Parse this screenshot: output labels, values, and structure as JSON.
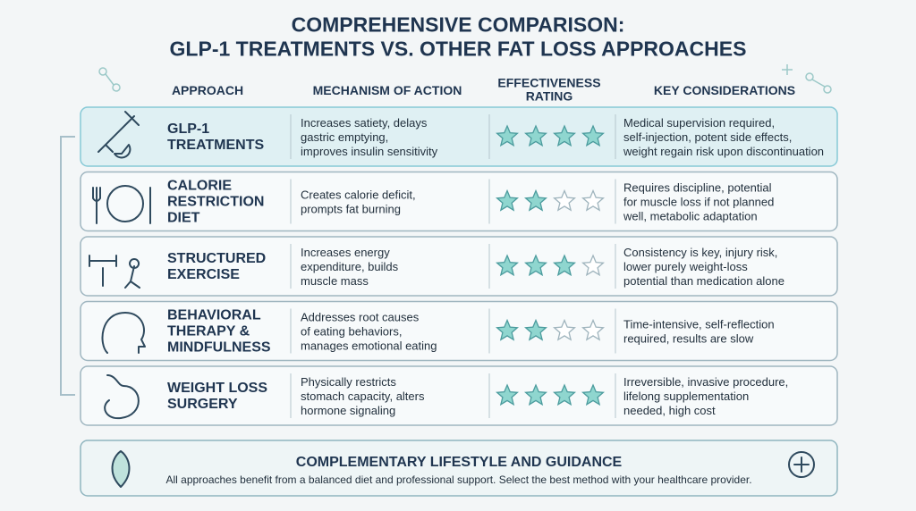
{
  "header": {
    "title_lines": [
      "COMPREHENSIVE COMPARISON:",
      "GLP-1 TREATMENTS VS. OTHER FAT LOSS APPROACHES"
    ]
  },
  "table": {
    "columns": [
      "APPROACH",
      "MECHANISM OF ACTION",
      [
        "EFFECTIVENESS",
        "RATING"
      ],
      "KEY CONSIDERATIONS"
    ],
    "rating_max": 4,
    "rows": [
      {
        "approach": [
          "GLP-1",
          "TREATMENTS"
        ],
        "mechanism": [
          "Increases satiety, delays",
          "gastric emptying,",
          "improves insulin sensitivity"
        ],
        "rating": 4,
        "considerations": [
          "Medical supervision required,",
          "self-injection, potent side effects,",
          "weight regain risk upon discontinuation"
        ]
      },
      {
        "approach": [
          "CALORIE",
          "RESTRICTION",
          "DIET"
        ],
        "mechanism": [
          "Creates calorie deficit,",
          "prompts fat burning"
        ],
        "rating": 2,
        "considerations": [
          "Requires discipline, potential",
          "for muscle loss if not planned",
          "well, metabolic adaptation"
        ]
      },
      {
        "approach": [
          "STRUCTURED",
          "EXERCISE"
        ],
        "mechanism": [
          "Increases energy",
          "expenditure, builds",
          "muscle mass"
        ],
        "rating": 3,
        "considerations": [
          "Consistency is key, injury risk,",
          "lower purely weight-loss",
          "potential than medication alone"
        ]
      },
      {
        "approach": [
          "BEHAVIORAL",
          "THERAPY &",
          "MINDFULNESS"
        ],
        "mechanism": [
          "Addresses root causes",
          "of eating behaviors,",
          "manages emotional eating"
        ],
        "rating": 2,
        "considerations": [
          "Time-intensive, self-reflection",
          "required, results are slow"
        ]
      },
      {
        "approach": [
          "WEIGHT LOSS",
          "SURGERY"
        ],
        "mechanism": [
          "Physically restricts",
          "stomach capacity, alters",
          "hormone signaling"
        ],
        "rating": 4,
        "considerations": [
          "Irreversible, invasive procedure,",
          "lifelong supplementation",
          "needed, high cost"
        ]
      }
    ]
  },
  "footer": {
    "title": "COMPLEMENTARY LIFESTYLE AND GUIDANCE",
    "text": "All approaches benefit from a balanced diet and professional support. Select the best method with your healthcare provider."
  }
}
